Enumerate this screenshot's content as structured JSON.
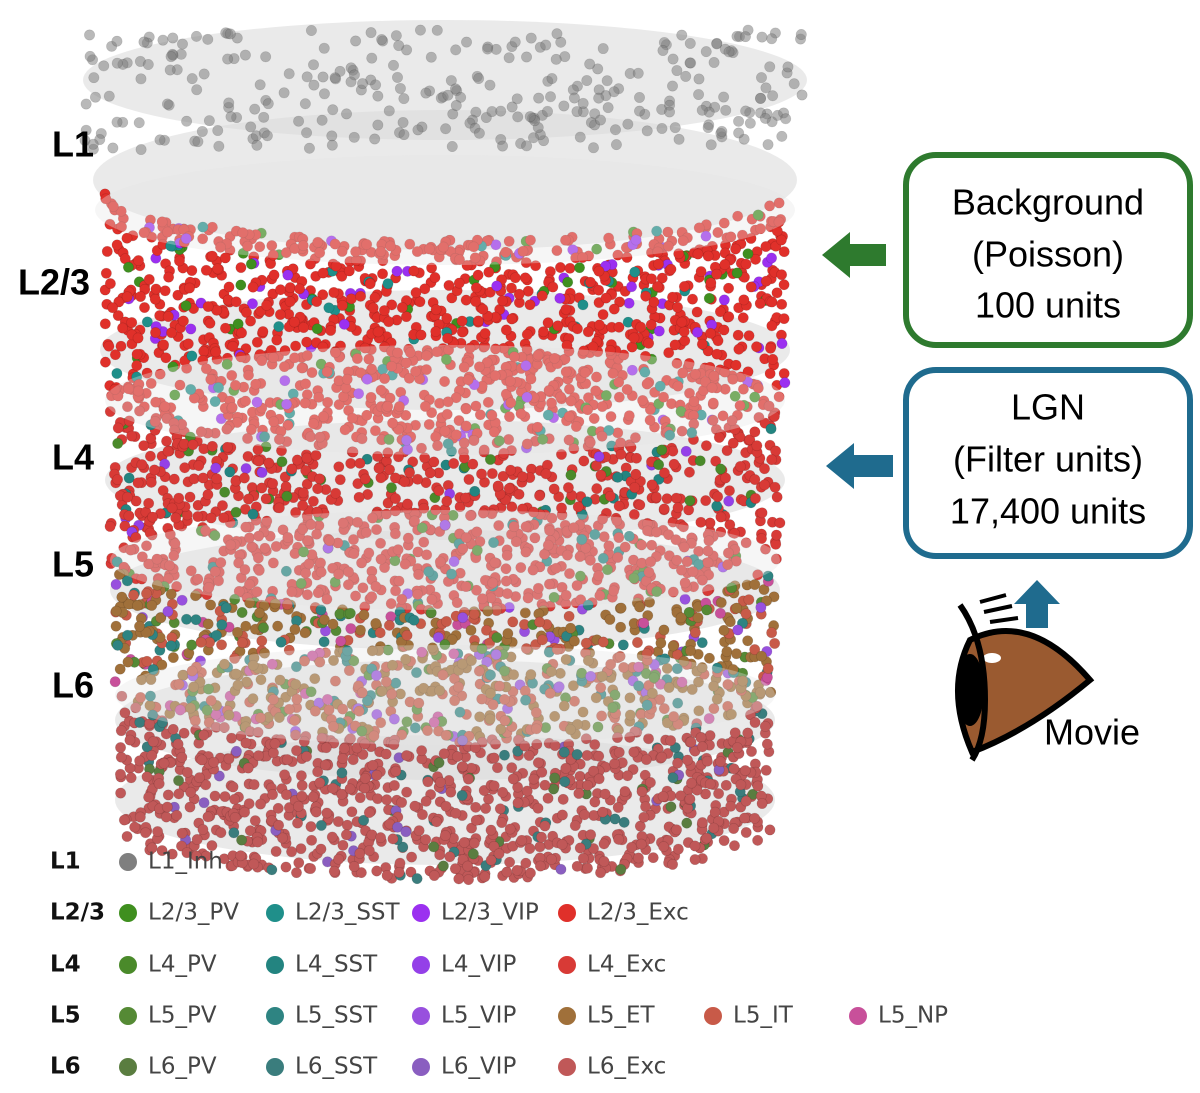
{
  "layer_labels": [
    "L1",
    "L2/3",
    "L4",
    "L5",
    "L6"
  ],
  "background": {
    "lines": [
      "Background",
      "(Poisson)",
      "100 units"
    ],
    "color": "#2e7a2e"
  },
  "lgn": {
    "lines": [
      "LGN",
      "(Filter units)",
      "17,400 units"
    ],
    "color": "#1f6b8e"
  },
  "movie_label": "Movie",
  "legend": [
    {
      "layer": "L1",
      "items": [
        {
          "name": "L1_Inh",
          "color": "#7f7f7f"
        }
      ]
    },
    {
      "layer": "L2/3",
      "items": [
        {
          "name": "L2/3_PV",
          "color": "#3f8f1f"
        },
        {
          "name": "L2/3_SST",
          "color": "#1f8f8a"
        },
        {
          "name": "L2/3_VIP",
          "color": "#9b30f0"
        },
        {
          "name": "L2/3_Exc",
          "color": "#e0302a"
        }
      ]
    },
    {
      "layer": "L4",
      "items": [
        {
          "name": "L4_PV",
          "color": "#4a8a2a"
        },
        {
          "name": "L4_SST",
          "color": "#238480"
        },
        {
          "name": "L4_VIP",
          "color": "#9440e8"
        },
        {
          "name": "L4_Exc",
          "color": "#d83a36"
        }
      ]
    },
    {
      "layer": "L5",
      "items": [
        {
          "name": "L5_PV",
          "color": "#558a35"
        },
        {
          "name": "L5_SST",
          "color": "#2e8482"
        },
        {
          "name": "L5_VIP",
          "color": "#9850de"
        },
        {
          "name": "L5_ET",
          "color": "#a0703a"
        },
        {
          "name": "L5_IT",
          "color": "#c85a48"
        },
        {
          "name": "L5_NP",
          "color": "#c8509a"
        }
      ]
    },
    {
      "layer": "L6",
      "items": [
        {
          "name": "L6_PV",
          "color": "#5a7d40"
        },
        {
          "name": "L6_SST",
          "color": "#3a7d7d"
        },
        {
          "name": "L6_VIP",
          "color": "#8a5ec0"
        },
        {
          "name": "L6_Exc",
          "color": "#c05858"
        }
      ]
    }
  ]
}
